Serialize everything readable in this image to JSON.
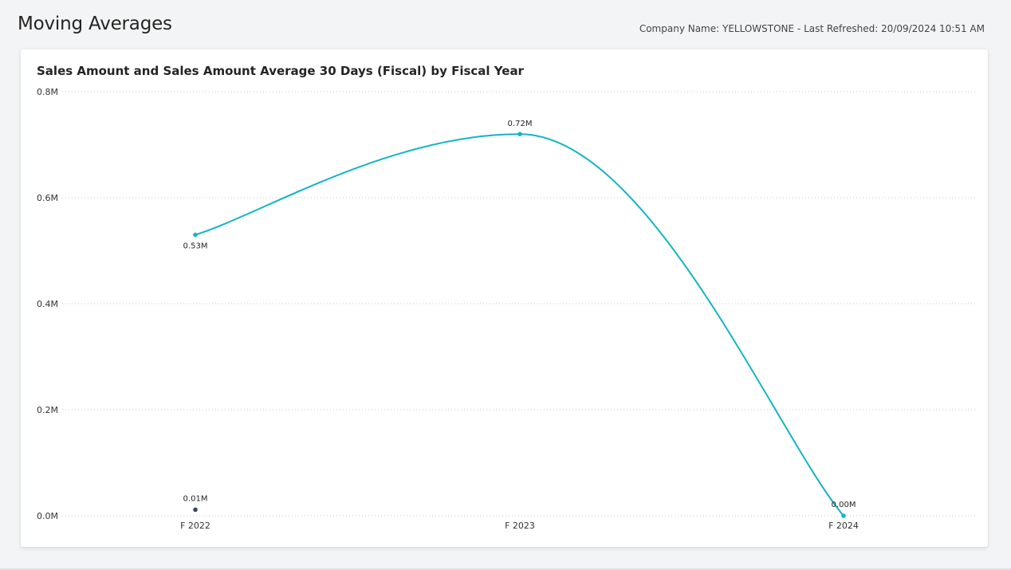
{
  "header": {
    "title": "Moving Averages",
    "meta": "Company Name: YELLOWSTONE - Last Refreshed: 20/09/2024 10:51 AM"
  },
  "chart_data": {
    "type": "line",
    "title": "Sales Amount and Sales Amount Average 30 Days (Fiscal) by Fiscal Year",
    "xlabel": "",
    "ylabel": "",
    "categories": [
      "F 2022",
      "F 2023",
      "F 2024"
    ],
    "ylim": [
      0,
      0.8
    ],
    "yticks": [
      0.0,
      0.2,
      0.4,
      0.6,
      0.8
    ],
    "ytick_labels": [
      "0.0M",
      "0.2M",
      "0.4M",
      "0.6M",
      "0.8M"
    ],
    "grid": true,
    "legend": "none",
    "series": [
      {
        "values": [
          0.53,
          0.72,
          0.0
        ],
        "labels": [
          "0.53M",
          "0.72M",
          "0.00M"
        ],
        "color": "#12b5c4",
        "style": "smooth-line"
      },
      {
        "values": [
          0.01,
          null,
          null
        ],
        "labels": [
          "0.01M",
          "",
          ""
        ],
        "color": "#3b4a5e",
        "style": "markers"
      }
    ]
  }
}
